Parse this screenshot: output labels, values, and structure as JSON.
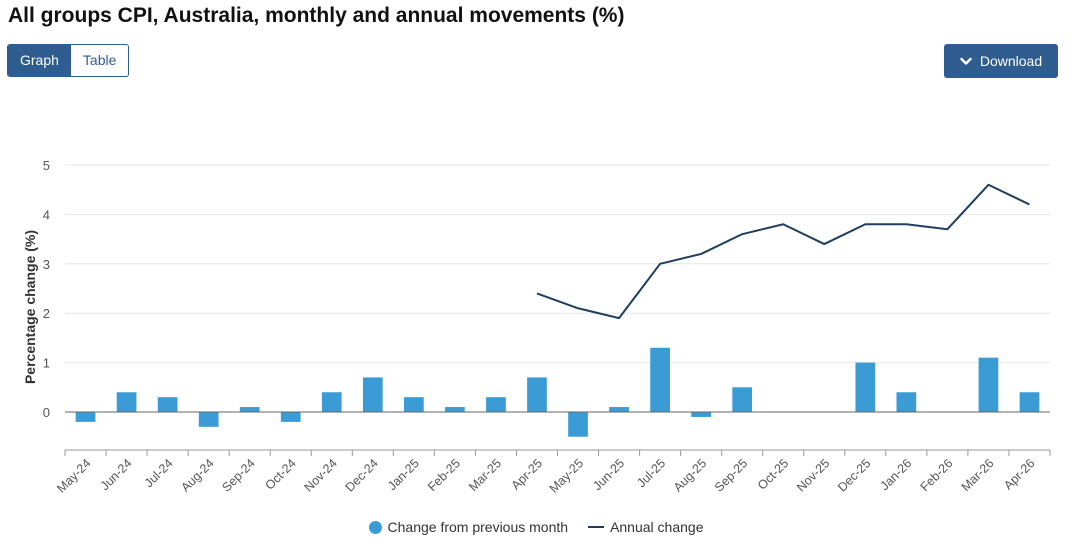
{
  "header": {
    "title": "All groups CPI, Australia, monthly and annual movements (%)"
  },
  "view_toggle": {
    "graph_label": "Graph",
    "table_label": "Table",
    "selected": "Graph"
  },
  "download": {
    "label": "Download",
    "icon": "chevron-down-icon"
  },
  "colors": {
    "accent": "#2f5d8f",
    "bar": "#3a9bd5",
    "line": "#1f3e5e",
    "grid": "#e6e6e6",
    "axis": "#888888"
  },
  "chart_data": {
    "type": "bar",
    "categories": [
      "May-24",
      "Jun-24",
      "Jul-24",
      "Aug-24",
      "Sep-24",
      "Oct-24",
      "Nov-24",
      "Dec-24",
      "Jan-25",
      "Feb-25",
      "Mar-25",
      "Apr-25",
      "May-25",
      "Jun-25",
      "Jul-25",
      "Aug-25",
      "Sep-25",
      "Oct-25",
      "Nov-25",
      "Dec-25",
      "Jan-26",
      "Feb-26",
      "Mar-26",
      "Apr-26"
    ],
    "series": [
      {
        "name": "Change from previous month",
        "type": "bar",
        "values": [
          -0.2,
          0.4,
          0.3,
          -0.3,
          0.1,
          -0.2,
          0.4,
          0.7,
          0.3,
          0.1,
          0.3,
          0.7,
          -0.5,
          0.1,
          1.3,
          -0.1,
          0.5,
          0.0,
          0.0,
          1.0,
          0.4,
          0.0,
          1.1,
          0.4
        ]
      },
      {
        "name": "Annual change",
        "type": "line",
        "values": [
          null,
          null,
          null,
          null,
          null,
          null,
          null,
          null,
          null,
          null,
          null,
          2.4,
          2.1,
          1.9,
          3.0,
          3.2,
          3.6,
          3.8,
          3.4,
          3.8,
          3.8,
          3.7,
          4.6,
          4.2
        ]
      }
    ],
    "title": "All groups CPI, Australia, monthly and annual movements (%)",
    "xlabel": "",
    "ylabel": "Percentage change (%)",
    "ylim": [
      -0.8,
      5
    ],
    "yticks": [
      0,
      1,
      2,
      3,
      4,
      5
    ],
    "grid": true,
    "legend_position": "bottom-center"
  }
}
